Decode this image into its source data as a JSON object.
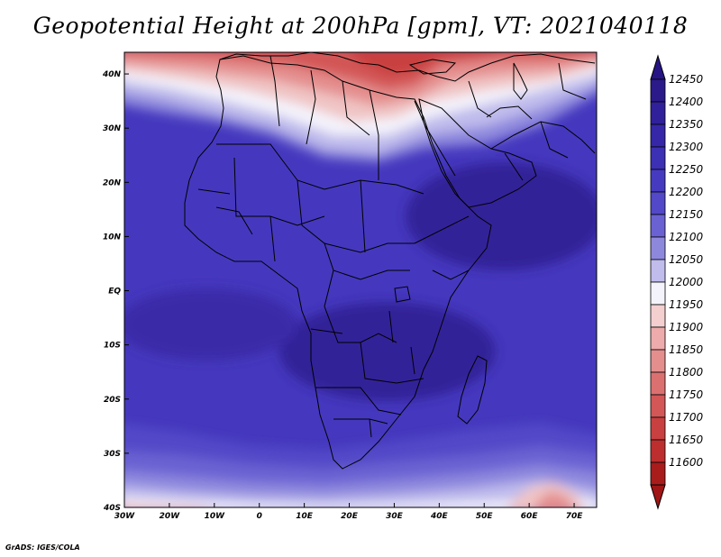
{
  "title": "Geopotential Height at 200hPa [gpm], VT: 2021040118",
  "credit": "GrADS: IGES/COLA",
  "map": {
    "lat_ticks": [
      "40N",
      "30N",
      "20N",
      "10N",
      "EQ",
      "10S",
      "20S",
      "30S",
      "40S"
    ],
    "lon_ticks": [
      "30W",
      "20W",
      "10W",
      "0",
      "10E",
      "20E",
      "30E",
      "40E",
      "50E",
      "60E",
      "70E"
    ],
    "lat_range": [
      -40,
      44
    ],
    "lon_range": [
      -30,
      75
    ]
  },
  "colorbar": {
    "levels": [
      "12450",
      "12400",
      "12350",
      "12300",
      "12250",
      "12200",
      "12150",
      "12100",
      "12050",
      "12000",
      "11950",
      "11900",
      "11850",
      "11800",
      "11750",
      "11700",
      "11650",
      "11600"
    ],
    "colors": [
      "#2a1a8a",
      "#30209a",
      "#3527a8",
      "#3c30b5",
      "#463bc0",
      "#5248c8",
      "#6a62d2",
      "#8e88dd",
      "#c0bcec",
      "#f4f3fb",
      "#f4cfcf",
      "#eeabab",
      "#e48e8e",
      "#db7070",
      "#d35757",
      "#c94040",
      "#bd2e2e",
      "#a81c1c"
    ],
    "top_arrow_color": "#261485",
    "bottom_arrow_color": "#a01515"
  },
  "field_colors": {
    "deep_blue": "#3a27b0",
    "mid_blue": "#4a3cc2",
    "light_blue": "#7c74d6",
    "pale_blue": "#c4c0ec",
    "white": "#f6f5fc",
    "pale_red": "#f0c4c4",
    "mid_red": "#e48a8a",
    "red": "#d35454",
    "dark_red": "#c43434"
  }
}
